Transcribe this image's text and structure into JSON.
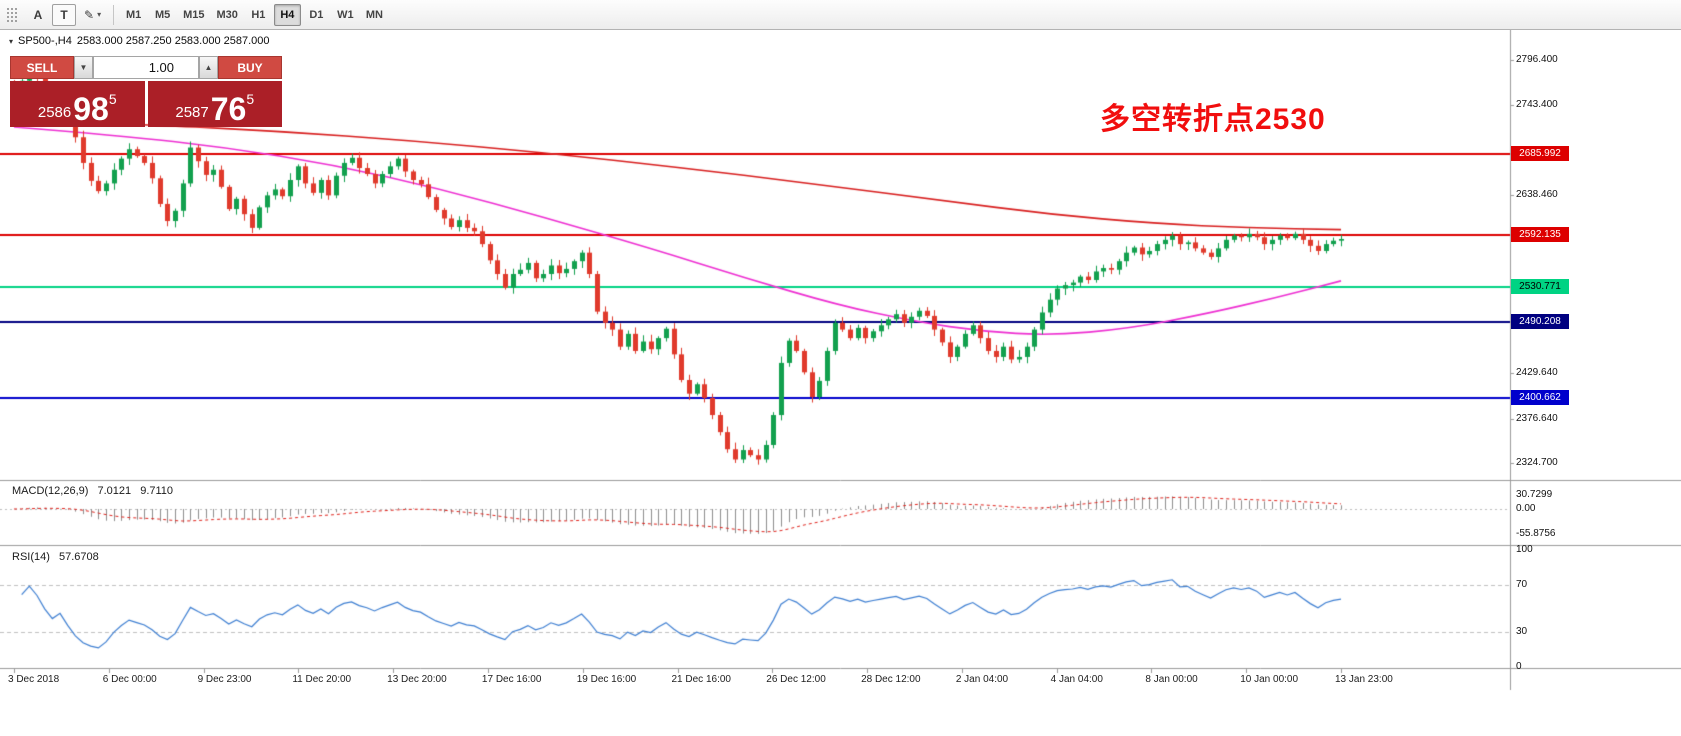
{
  "toolbar": {
    "tools": [
      {
        "id": "toolbar-drag-handle",
        "type": "handle"
      },
      {
        "id": "text-label-tool",
        "glyph": "A"
      },
      {
        "id": "text-box-tool",
        "glyph": "T",
        "boxed": true
      },
      {
        "id": "drawing-tools-dropdown",
        "glyph": "✎",
        "caret": "▾"
      }
    ],
    "timeframes": [
      "M1",
      "M5",
      "M15",
      "M30",
      "H1",
      "H4",
      "D1",
      "W1",
      "MN"
    ],
    "active_timeframe": "H4"
  },
  "header": {
    "symbol": "SP500-,H4",
    "ohlc": "2583.000 2587.250 2583.000 2587.000",
    "collapse_icon": "▾"
  },
  "trade_panel": {
    "sell_label": "SELL",
    "buy_label": "BUY",
    "volume": "1.00",
    "spin_down_icon": "▼",
    "spin_up_icon": "▲",
    "sell_price": {
      "prefix": "2586",
      "big": "98",
      "sup": "5"
    },
    "buy_price": {
      "prefix": "2587",
      "big": "76",
      "sup": "5"
    }
  },
  "annotation": {
    "text": "多空转折点2530",
    "color": "#f10e0e"
  },
  "indicators": {
    "macd": {
      "label": "MACD(12,26,9)",
      "value_main": "7.0121",
      "value_signal": "9.7110",
      "axis_labels": [
        "30.7299",
        "0.00",
        "-55.8756"
      ]
    },
    "rsi": {
      "label": "RSI(14)",
      "value": "57.6708",
      "axis_labels": [
        "100",
        "70",
        "30",
        "0"
      ]
    }
  },
  "chart_data": {
    "type": "candlestick",
    "symbol": "SP500-",
    "timeframe": "H4",
    "bars_per_day": 6,
    "price_range": {
      "max": 2828,
      "min": 2305
    },
    "price_ticks": [
      2796.4,
      2743.4,
      2638.46,
      2429.64,
      2376.64,
      2324.7
    ],
    "levels": [
      {
        "price": 2685.992,
        "color": "#dd0000",
        "text": "#ffffff"
      },
      {
        "price": 2592.135,
        "color": "#dd0000",
        "text": "#ffffff"
      },
      {
        "price": 2530.771,
        "color": "#00d383",
        "text": "#000000"
      },
      {
        "price": 2490.208,
        "color": "#000080",
        "text": "#ffffff"
      },
      {
        "price": 2400.662,
        "color": "#0000cc",
        "text": "#ffffff"
      }
    ],
    "closes": [
      2760,
      2772,
      2783,
      2776,
      2763,
      2750,
      2756,
      2735,
      2706,
      2676,
      2655,
      2643,
      2652,
      2668,
      2681,
      2692,
      2684,
      2676,
      2658,
      2628,
      2608,
      2620,
      2652,
      2694,
      2678,
      2662,
      2668,
      2648,
      2622,
      2634,
      2616,
      2600,
      2624,
      2638,
      2645,
      2637,
      2656,
      2672,
      2652,
      2641,
      2656,
      2638,
      2661,
      2676,
      2682,
      2670,
      2663,
      2652,
      2663,
      2672,
      2681,
      2666,
      2656,
      2651,
      2636,
      2621,
      2611,
      2601,
      2609,
      2600,
      2596,
      2581,
      2562,
      2546,
      2530,
      2546,
      2551,
      2559,
      2541,
      2546,
      2556,
      2547,
      2552,
      2561,
      2571,
      2546,
      2502,
      2489,
      2481,
      2461,
      2476,
      2456,
      2467,
      2458,
      2471,
      2482,
      2452,
      2422,
      2406,
      2417,
      2401,
      2381,
      2361,
      2341,
      2329,
      2340,
      2334,
      2329,
      2346,
      2381,
      2442,
      2468,
      2456,
      2431,
      2402,
      2421,
      2456,
      2489,
      2481,
      2471,
      2483,
      2471,
      2479,
      2486,
      2493,
      2499,
      2489,
      2496,
      2503,
      2497,
      2481,
      2466,
      2449,
      2461,
      2476,
      2486,
      2471,
      2456,
      2449,
      2461,
      2446,
      2449,
      2461,
      2481,
      2501,
      2516,
      2529,
      2533,
      2536,
      2543,
      2539,
      2549,
      2553,
      2551,
      2561,
      2571,
      2577,
      2569,
      2573,
      2581,
      2586,
      2591,
      2581,
      2583,
      2576,
      2571,
      2566,
      2576,
      2586,
      2591,
      2589,
      2593,
      2589,
      2581,
      2586,
      2591,
      2588,
      2593,
      2586,
      2579,
      2573,
      2581,
      2585,
      2587
    ],
    "ma_slow_red": [
      [
        0,
        2726
      ],
      [
        0.1,
        2721
      ],
      [
        0.2,
        2713
      ],
      [
        0.3,
        2702
      ],
      [
        0.4,
        2688
      ],
      [
        0.5,
        2671
      ],
      [
        0.6,
        2652
      ],
      [
        0.7,
        2632
      ],
      [
        0.78,
        2616
      ],
      [
        0.86,
        2605
      ],
      [
        0.93,
        2600
      ],
      [
        1,
        2598
      ]
    ],
    "ma_fast_magenta": [
      [
        0,
        2718
      ],
      [
        0.08,
        2708
      ],
      [
        0.16,
        2694
      ],
      [
        0.24,
        2674
      ],
      [
        0.32,
        2646
      ],
      [
        0.4,
        2612
      ],
      [
        0.48,
        2576
      ],
      [
        0.55,
        2542
      ],
      [
        0.62,
        2510
      ],
      [
        0.68,
        2490
      ],
      [
        0.73,
        2479
      ],
      [
        0.78,
        2474
      ],
      [
        0.84,
        2482
      ],
      [
        0.9,
        2500
      ],
      [
        0.95,
        2518
      ],
      [
        1,
        2538
      ]
    ],
    "macd": {
      "params": [
        12,
        26,
        9
      ],
      "current": 7.0121,
      "signal": 9.711,
      "scale_max": 30.7299,
      "scale_min": -55.8756
    },
    "rsi": {
      "period": 14,
      "current": 57.6708,
      "levels": [
        30,
        70
      ]
    },
    "time_labels": [
      "3 Dec 2018",
      "6 Dec 00:00",
      "9 Dec 23:00",
      "11 Dec 20:00",
      "13 Dec 20:00",
      "17 Dec 16:00",
      "19 Dec 16:00",
      "21 Dec 16:00",
      "26 Dec 12:00",
      "28 Dec 12:00",
      "2 Jan 04:00",
      "4 Jan 04:00",
      "8 Jan 00:00",
      "10 Jan 00:00",
      "13 Jan 23:00"
    ],
    "colors": {
      "up": "#12a04e",
      "down": "#e03a2c",
      "ma_red": "#d81f1f",
      "ma_magenta": "#ee2fd2",
      "macd_hist": "#8e8e8e",
      "macd_signal": "#e0221b",
      "rsi_line": "#3e7fd2",
      "level_dash": "#c0c0c0",
      "border": "#9a9a9a"
    }
  }
}
